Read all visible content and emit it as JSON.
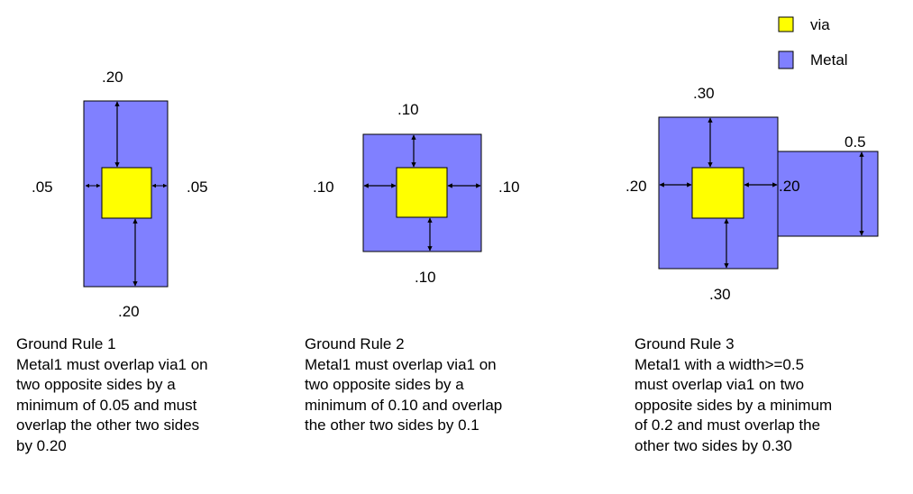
{
  "colors": {
    "via": "#ffff00",
    "metal": "#8080ff",
    "outline": "#000000"
  },
  "legend": {
    "via_label": "via",
    "metal_label": "Metal"
  },
  "rule1": {
    "dims": {
      "top": ".20",
      "bottom": ".20",
      "left": ".05",
      "right": ".05"
    },
    "caption": {
      "title": "Ground Rule 1",
      "lines": [
        "Metal1 must overlap via1 on",
        "two opposite sides by a",
        "minimum of 0.05 and must",
        "overlap the other two sides",
        "by 0.20"
      ]
    }
  },
  "rule2": {
    "dims": {
      "top": ".10",
      "bottom": ".10",
      "left": ".10",
      "right": ".10"
    },
    "caption": {
      "title": "Ground Rule 2",
      "lines": [
        "Metal1 must overlap via1 on",
        "two opposite sides by a",
        "minimum of 0.10 and overlap",
        "the other two sides by 0.1"
      ]
    }
  },
  "rule3": {
    "dims": {
      "top": ".30",
      "bottom": ".30",
      "left": ".20",
      "right": ".20",
      "width": "0.5"
    },
    "caption": {
      "title": "Ground Rule 3",
      "lines": [
        "Metal1 with a width>=0.5",
        "must overlap via1 on two",
        "opposite sides by a minimum",
        "of 0.2 and must overlap the",
        "other two sides by 0.30"
      ]
    }
  }
}
